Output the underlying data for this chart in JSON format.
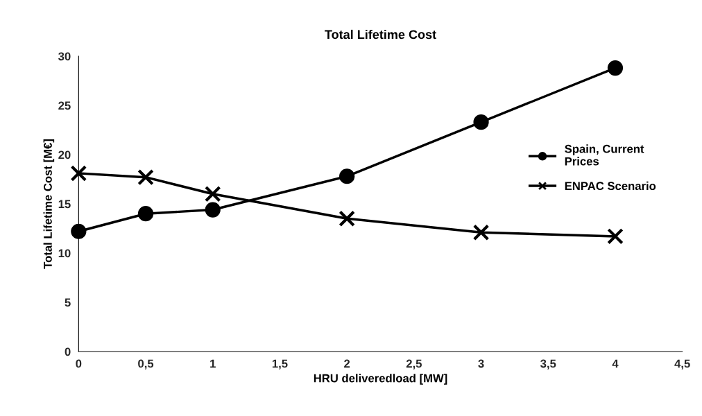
{
  "chart_data": {
    "type": "line",
    "title": "Total Lifetime Cost",
    "xlabel": "HRU deliveredload [MW]",
    "ylabel": "Total Lifetime Cost [M€]",
    "x": [
      0,
      0.5,
      1,
      2,
      3,
      4
    ],
    "series": [
      {
        "name": "Spain, Current\nPrices",
        "color": "#000000",
        "marker": "circle",
        "values": [
          12.2,
          14.0,
          14.4,
          17.8,
          23.3,
          28.8
        ]
      },
      {
        "name": "ENPAC Scenario",
        "color": "#000000",
        "marker": "cross",
        "values": [
          18.1,
          17.7,
          16.0,
          13.5,
          12.1,
          11.7
        ]
      }
    ],
    "xlim": [
      0,
      4.5
    ],
    "xticks": [
      0,
      {
        "value": 0.5,
        "label": "0,5"
      },
      1,
      {
        "value": 1.5,
        "label": "1,5"
      },
      2,
      {
        "value": 2.5,
        "label": "2,5"
      },
      3,
      {
        "value": 3.5,
        "label": "3,5"
      },
      4,
      {
        "value": 4.5,
        "label": "4,5"
      }
    ],
    "ylim": [
      0,
      30
    ],
    "yticks": [
      0,
      5,
      10,
      15,
      20,
      25,
      30
    ],
    "grid": false,
    "legend": "right",
    "line_style": "solid"
  }
}
